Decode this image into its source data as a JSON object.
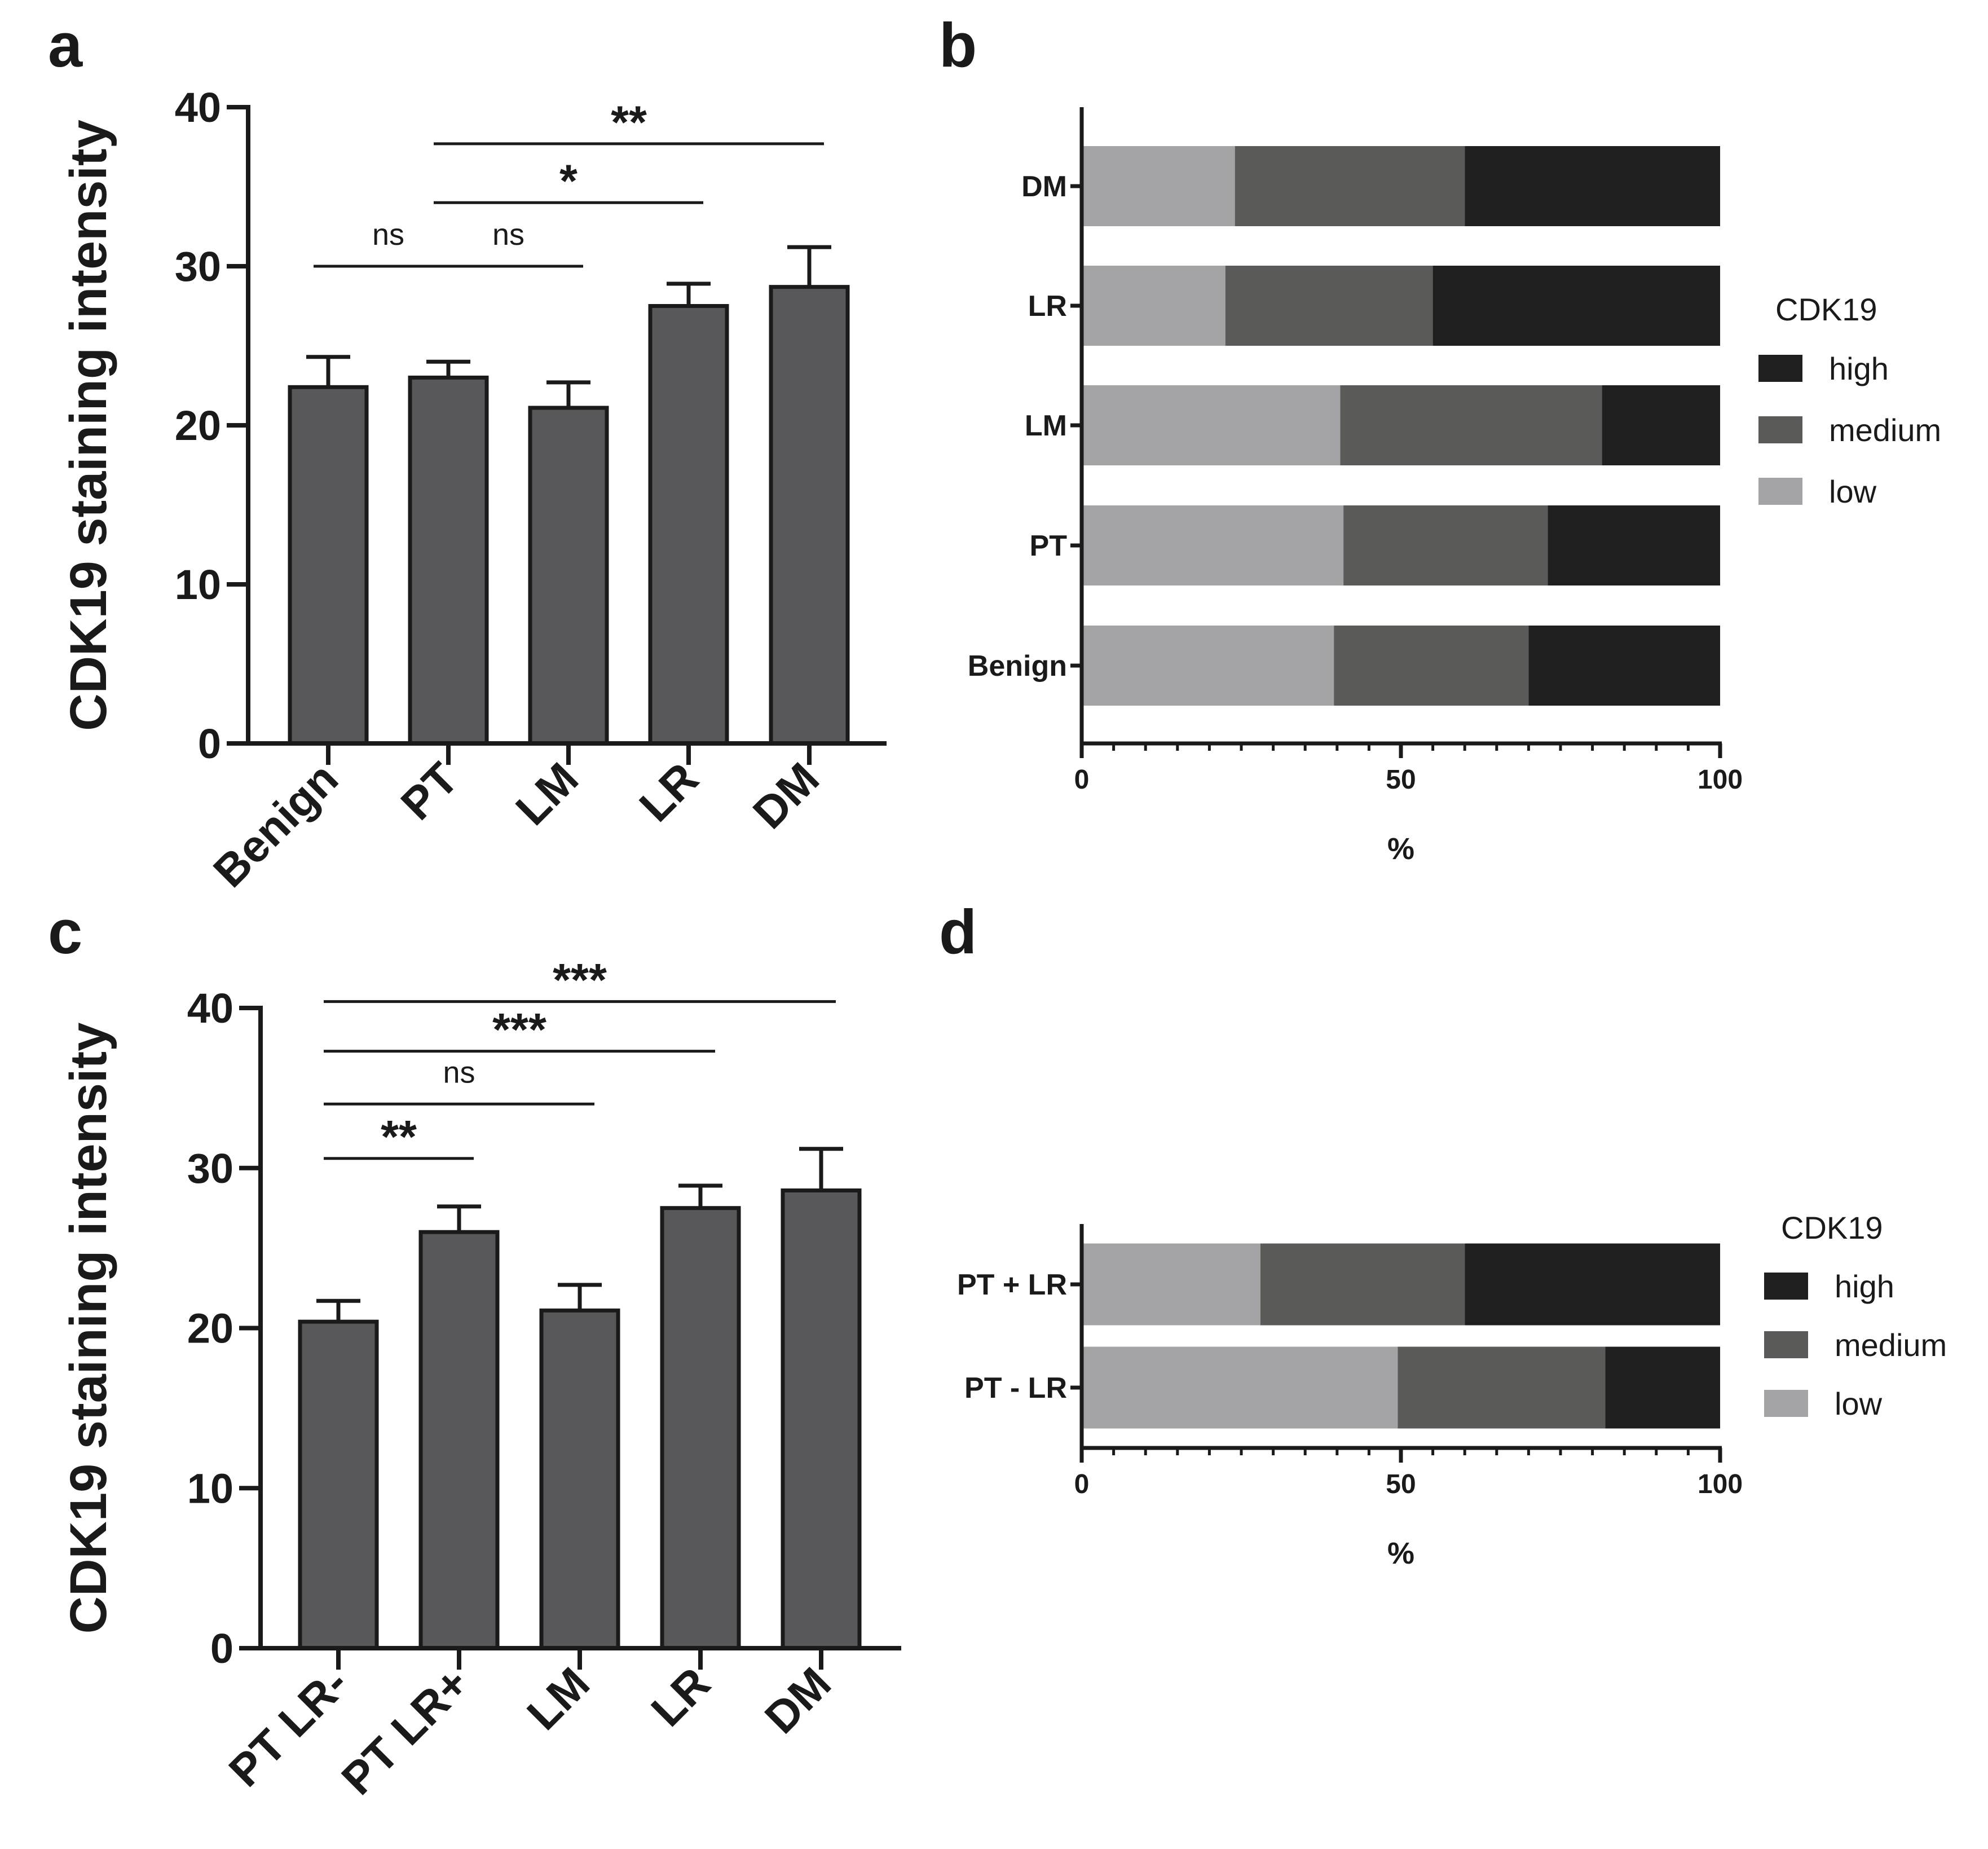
{
  "colors": {
    "high": "#1f1f1f",
    "medium": "#5a5a59",
    "low": "#a4a3a5",
    "bar": "#58585a",
    "axis": "#1a1a1a"
  },
  "chart_data": [
    {
      "panel": "a",
      "type": "bar",
      "ylabel": "CDK19 staining intensity",
      "ylim": [
        0,
        40
      ],
      "yticks": [
        0,
        10,
        20,
        30,
        40
      ],
      "ytick_labels": [
        "0",
        "10",
        "20",
        "30",
        "40"
      ],
      "categories": [
        "Benign",
        "PT",
        "LM",
        "LR",
        "DM"
      ],
      "values": [
        22.4,
        23.0,
        21.1,
        27.5,
        28.7
      ],
      "error": [
        1.9,
        1.0,
        1.6,
        1.4,
        2.5
      ],
      "comparisons": [
        {
          "from": 0,
          "to": 1,
          "label": "ns",
          "level": 30.0
        },
        {
          "from": 1,
          "to": 2,
          "label": "ns",
          "level": 30.0
        },
        {
          "from": 1,
          "to": 3,
          "label": "*",
          "level": 34.0
        },
        {
          "from": 1,
          "to": 4,
          "label": "**",
          "level": 37.7
        }
      ]
    },
    {
      "panel": "b",
      "type": "bar",
      "orientation": "horizontal-stacked",
      "xlabel": "%",
      "xlim": [
        0,
        100
      ],
      "xticks": [
        0,
        50,
        100
      ],
      "xtick_labels": [
        "0",
        "50",
        "100"
      ],
      "legend_title": "CDK19",
      "legend_items": [
        "high",
        "medium",
        "low"
      ],
      "legend_position": "right",
      "categories": [
        "DM",
        "LR",
        "LM",
        "PT",
        "Benign"
      ],
      "series": [
        {
          "name": "low",
          "values": [
            24,
            22.5,
            40.5,
            41,
            39.5
          ]
        },
        {
          "name": "medium",
          "values": [
            36,
            32.5,
            41,
            32,
            30.5
          ]
        },
        {
          "name": "high",
          "values": [
            40,
            45,
            18.5,
            27,
            30
          ]
        }
      ]
    },
    {
      "panel": "c",
      "type": "bar",
      "ylabel": "CDK19 staining intensity",
      "ylim": [
        0,
        40
      ],
      "yticks": [
        0,
        10,
        20,
        30,
        40
      ],
      "ytick_labels": [
        "0",
        "10",
        "20",
        "30",
        "40"
      ],
      "categories": [
        "PT LR-",
        "PT LR+",
        "LM",
        "LR",
        "DM"
      ],
      "values": [
        20.4,
        26.0,
        21.1,
        27.5,
        28.6
      ],
      "error": [
        1.3,
        1.6,
        1.6,
        1.4,
        2.6
      ],
      "comparisons": [
        {
          "from": 0,
          "to": 1,
          "label": "**",
          "level": 30.6
        },
        {
          "from": 0,
          "to": 2,
          "label": "ns",
          "level": 34.0
        },
        {
          "from": 0,
          "to": 3,
          "label": "***",
          "level": 37.3
        },
        {
          "from": 0,
          "to": 4,
          "label": "***",
          "level": 40.4
        }
      ]
    },
    {
      "panel": "d",
      "type": "bar",
      "orientation": "horizontal-stacked",
      "xlabel": "%",
      "xlim": [
        0,
        100
      ],
      "xticks": [
        0,
        50,
        100
      ],
      "xtick_labels": [
        "0",
        "50",
        "100"
      ],
      "legend_title": "CDK19",
      "legend_items": [
        "high",
        "medium",
        "low"
      ],
      "legend_position": "right",
      "categories": [
        "PT  + LR",
        "PT - LR"
      ],
      "series": [
        {
          "name": "low",
          "values": [
            28,
            49.5
          ]
        },
        {
          "name": "medium",
          "values": [
            32,
            32.5
          ]
        },
        {
          "name": "high",
          "values": [
            40,
            18
          ]
        }
      ]
    }
  ]
}
